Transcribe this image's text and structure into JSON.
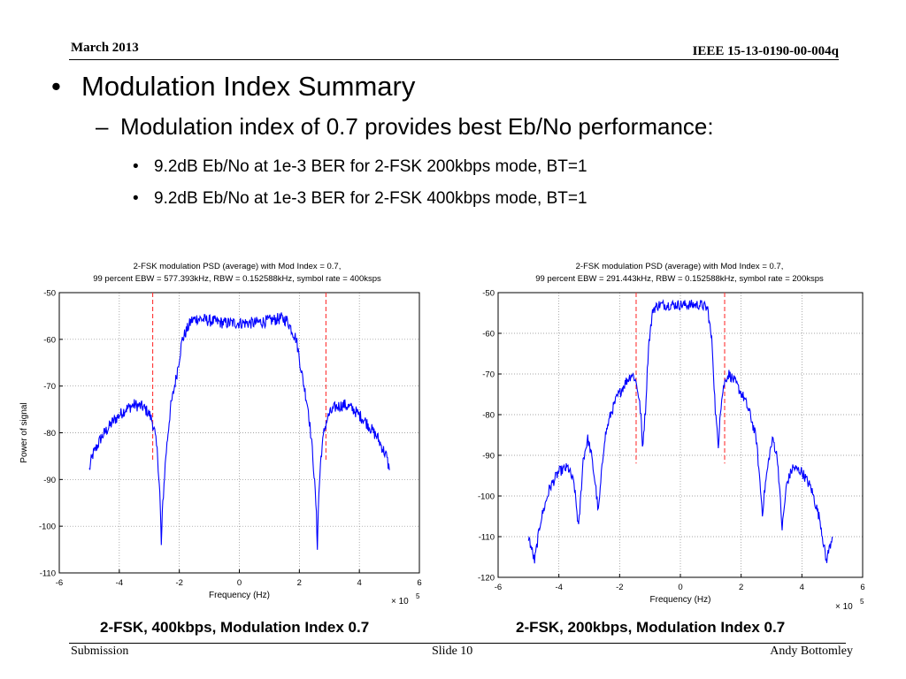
{
  "header": {
    "date": "March 2013",
    "doc_id": "IEEE 15-13-0190-00-004q"
  },
  "slide": {
    "bullet_mark": "•",
    "dash_mark": "–",
    "title": "Modulation Index Summary",
    "sub": "Modulation index of 0.7 provides best Eb/No performance:",
    "points": [
      "9.2dB Eb/No at 1e-3 BER for 2-FSK 200kbps mode, BT=1",
      "9.2dB Eb/No at 1e-3 BER for 2-FSK 400kbps mode, BT=1"
    ]
  },
  "captions": [
    "2-FSK, 400kbps, Modulation Index 0.7",
    "2-FSK, 200kbps, Modulation Index 0.7"
  ],
  "footer": {
    "left": "Submission",
    "center": "Slide 10",
    "right": "Andy Bottomley"
  },
  "colors": {
    "trace": "#0000ff",
    "bandwidth_marker": "#ff3333",
    "grid": "#888888"
  },
  "chart_data": [
    {
      "type": "line",
      "title": [
        "2-FSK modulation PSD (average) with Mod Index = 0.7,",
        "99 percent EBW = 577.393kHz, RBW = 0.152588kHz, symbol rate = 400ksps"
      ],
      "xlabel": "Frequency (Hz)",
      "ylabel": "Power of signal",
      "x_multiplier": "× 10",
      "x_multiplier_exp": "5",
      "xlim": [
        -6,
        6
      ],
      "ylim": [
        -110,
        -50
      ],
      "xticks": [
        "-6",
        "-4",
        "-2",
        "0",
        "2",
        "4",
        "6"
      ],
      "yticks": [
        "-50",
        "-60",
        "-70",
        "-80",
        "-90",
        "-100",
        "-110"
      ],
      "grid": true,
      "bandwidth_markers": [
        -2.887,
        2.887
      ],
      "series": [
        {
          "x": [
            -5.0,
            -4.9,
            -4.6,
            -4.2,
            -3.8,
            -3.5,
            -3.2,
            -3.0,
            -2.9,
            -2.82,
            -2.72,
            -2.65,
            -2.6,
            -2.55,
            -2.45,
            -2.3,
            -2.1,
            -2.0,
            -1.9,
            -1.75,
            -1.6,
            -1.4,
            -1.0,
            -0.5,
            0,
            0.5,
            1.0,
            1.4,
            1.6,
            1.75,
            1.9,
            2.0,
            2.1,
            2.3,
            2.45,
            2.55,
            2.6,
            2.65,
            2.72,
            2.82,
            2.9,
            3.0,
            3.2,
            3.5,
            3.8,
            4.2,
            4.6,
            4.9,
            5.0
          ],
          "y": [
            -88,
            -85,
            -81,
            -77.5,
            -75,
            -74,
            -74.5,
            -76,
            -77.5,
            -80,
            -85,
            -93,
            -104,
            -95,
            -85,
            -75,
            -68,
            -64,
            -60,
            -58,
            -56,
            -55.5,
            -56,
            -56.5,
            -56.5,
            -56.5,
            -56,
            -55.5,
            -56,
            -58,
            -60,
            -64,
            -68,
            -75,
            -85,
            -95,
            -104,
            -93,
            -85,
            -80,
            -77.5,
            -76,
            -74.5,
            -74,
            -75,
            -77.5,
            -81,
            -85,
            -88
          ]
        }
      ]
    },
    {
      "type": "line",
      "title": [
        "2-FSK modulation PSD (average) with Mod Index = 0.7,",
        "99 percent EBW = 291.443kHz, RBW = 0.152588kHz, symbol rate = 200ksps"
      ],
      "xlabel": "Frequency (Hz)",
      "ylabel": "",
      "x_multiplier": "× 10",
      "x_multiplier_exp": "5",
      "xlim": [
        -6,
        6
      ],
      "ylim": [
        -120,
        -50
      ],
      "xticks": [
        "-6",
        "-4",
        "-2",
        "0",
        "2",
        "4",
        "6"
      ],
      "yticks": [
        "-50",
        "-60",
        "-70",
        "-80",
        "-90",
        "-100",
        "-110",
        "-120"
      ],
      "grid": true,
      "bandwidth_markers": [
        -1.457,
        1.457
      ],
      "series": [
        {
          "x": [
            -5.0,
            -4.9,
            -4.8,
            -4.6,
            -4.3,
            -4.0,
            -3.7,
            -3.5,
            -3.35,
            -3.2,
            -3.05,
            -2.95,
            -2.8,
            -2.7,
            -2.6,
            -2.5,
            -2.3,
            -2.1,
            -1.8,
            -1.6,
            -1.5,
            -1.4,
            -1.3,
            -1.25,
            -1.15,
            -1.05,
            -0.9,
            -0.7,
            -0.4,
            0,
            0.4,
            0.7,
            0.9,
            1.05,
            1.15,
            1.25,
            1.3,
            1.4,
            1.5,
            1.6,
            1.8,
            2.1,
            2.3,
            2.5,
            2.6,
            2.7,
            2.8,
            2.95,
            3.05,
            3.2,
            3.35,
            3.5,
            3.7,
            4.0,
            4.3,
            4.6,
            4.8,
            4.9,
            5.0
          ],
          "y": [
            -110,
            -113,
            -116,
            -106,
            -98,
            -94,
            -93,
            -97,
            -108,
            -91,
            -86,
            -89,
            -97,
            -104,
            -95,
            -86,
            -80,
            -76,
            -72,
            -70,
            -71,
            -74,
            -80,
            -88,
            -79,
            -63,
            -54,
            -53,
            -53,
            -53,
            -53,
            -53,
            -54,
            -63,
            -79,
            -88,
            -80,
            -74,
            -71,
            -70,
            -72,
            -76,
            -80,
            -86,
            -95,
            -104,
            -97,
            -89,
            -86,
            -91,
            -108,
            -97,
            -93,
            -94,
            -98,
            -106,
            -116,
            -113,
            -110
          ]
        }
      ]
    }
  ]
}
